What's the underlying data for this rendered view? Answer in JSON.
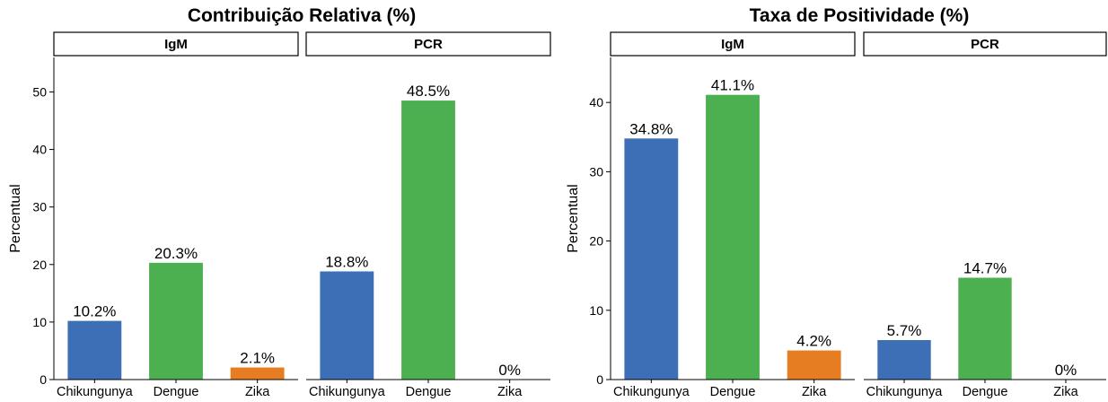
{
  "colors": {
    "Chikungunya": "#3d6fb6",
    "Dengue": "#4cb050",
    "Zika": "#e77d22",
    "strip_fill": "#ffffff",
    "strip_border": "#000000"
  },
  "chart_data": [
    {
      "type": "bar",
      "title": "Contribuição Relativa (%)",
      "ylabel": "Percentual",
      "xlabel": "",
      "ylim": [
        0,
        56
      ],
      "yticks": [
        0,
        10,
        20,
        30,
        40,
        50
      ],
      "yticks_text": [
        "0",
        "10",
        "20",
        "30",
        "40",
        "50"
      ],
      "grid": false,
      "categories": [
        "Chikungunya",
        "Dengue",
        "Zika"
      ],
      "panels": [
        {
          "name": "IgM",
          "values": [
            10.2,
            20.3,
            2.1
          ],
          "labels": [
            "10.2%",
            "20.3%",
            "2.1%"
          ]
        },
        {
          "name": "PCR",
          "values": [
            18.8,
            48.5,
            0
          ],
          "labels": [
            "18.8%",
            "48.5%",
            "0%"
          ]
        }
      ]
    },
    {
      "type": "bar",
      "title": "Taxa de Positividade (%)",
      "ylabel": "Percentual",
      "xlabel": "",
      "ylim": [
        0,
        46.5
      ],
      "yticks": [
        0,
        10,
        20,
        30,
        40
      ],
      "yticks_text": [
        "0",
        "10",
        "20",
        "30",
        "40"
      ],
      "grid": false,
      "categories": [
        "Chikungunya",
        "Dengue",
        "Zika"
      ],
      "panels": [
        {
          "name": "IgM",
          "values": [
            34.8,
            41.1,
            4.2
          ],
          "labels": [
            "34.8%",
            "41.1%",
            "4.2%"
          ]
        },
        {
          "name": "PCR",
          "values": [
            5.7,
            14.7,
            0
          ],
          "labels": [
            "5.7%",
            "14.7%",
            "0%"
          ]
        }
      ]
    }
  ]
}
